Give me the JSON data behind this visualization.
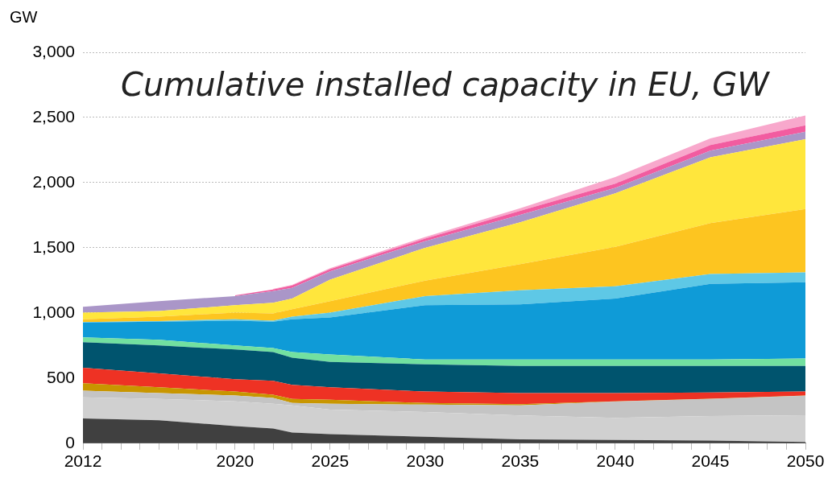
{
  "chart_data": {
    "type": "area",
    "title": "Cumulative installed capacity in EU, GW",
    "ylabel": "GW",
    "stacked": true,
    "x": [
      2012,
      2016,
      2020,
      2022,
      2023,
      2025,
      2030,
      2035,
      2040,
      2045,
      2050
    ],
    "series": [
      {
        "color": "#404040",
        "values": [
          190,
          176,
          132,
          113,
          82,
          70,
          50,
          30,
          25,
          20,
          10
        ]
      },
      {
        "color": "#d0d0d0",
        "values": [
          163,
          164,
          190,
          190,
          208,
          188,
          190,
          184,
          170,
          188,
          205
        ]
      },
      {
        "color": "#c4c4c4",
        "values": [
          51,
          45,
          44,
          44,
          19,
          45,
          56,
          76,
          125,
          132,
          150
        ]
      },
      {
        "color": "#c89600",
        "values": [
          56,
          44,
          31,
          25,
          31,
          31,
          13,
          10,
          2,
          1,
          1
        ]
      },
      {
        "color": "#ee3224",
        "values": [
          120,
          107,
          95,
          107,
          108,
          95,
          88,
          85,
          63,
          49,
          31
        ]
      },
      {
        "color": "#00546e",
        "values": [
          195,
          214,
          227,
          221,
          208,
          195,
          208,
          208,
          208,
          203,
          196
        ]
      },
      {
        "color": "#72e0a0",
        "values": [
          38,
          44,
          31,
          31,
          44,
          57,
          38,
          50,
          50,
          50,
          57
        ]
      },
      {
        "color": "#0f9bd7",
        "values": [
          114,
          139,
          190,
          202,
          252,
          284,
          417,
          423,
          467,
          580,
          586
        ]
      },
      {
        "color": "#5ec8e6",
        "values": [
          3,
          4,
          12,
          7,
          19,
          38,
          69,
          107,
          94,
          76,
          75
        ]
      },
      {
        "color": "#fdc520",
        "values": [
          22,
          34,
          51,
          56,
          57,
          88,
          119,
          202,
          303,
          391,
          486
        ]
      },
      {
        "color": "#ffe63c",
        "values": [
          51,
          44,
          56,
          82,
          82,
          164,
          252,
          321,
          410,
          504,
          536
        ]
      },
      {
        "color": "#aa96c8",
        "values": [
          44,
          76,
          70,
          89,
          82,
          63,
          51,
          57,
          43,
          51,
          57
        ]
      },
      {
        "color": "#f25ca0",
        "values": [
          null,
          null,
          6,
          13,
          18,
          17,
          19,
          31,
          32,
          44,
          50
        ]
      },
      {
        "color": "#f8a8cc",
        "values": [
          null,
          null,
          null,
          5,
          5,
          8,
          13,
          19,
          51,
          51,
          76
        ]
      }
    ],
    "xlim": [
      2012,
      2050
    ],
    "xticks": [
      2012,
      {
        "value": 2013,
        "label": null
      },
      {
        "value": 2014,
        "label": null
      },
      {
        "value": 2015,
        "label": null
      },
      {
        "value": 2016,
        "label": null
      },
      {
        "value": 2017,
        "label": null
      },
      {
        "value": 2018,
        "label": null
      },
      {
        "value": 2019,
        "label": null
      },
      2020,
      {
        "value": 2021,
        "label": null
      },
      {
        "value": 2022,
        "label": null
      },
      {
        "value": 2023,
        "label": null
      },
      {
        "value": 2024,
        "label": null
      },
      2025,
      {
        "value": 2026,
        "label": null
      },
      {
        "value": 2027,
        "label": null
      },
      {
        "value": 2028,
        "label": null
      },
      {
        "value": 2029,
        "label": null
      },
      2030,
      {
        "value": 2031,
        "label": null
      },
      {
        "value": 2032,
        "label": null
      },
      {
        "value": 2033,
        "label": null
      },
      {
        "value": 2034,
        "label": null
      },
      2035,
      {
        "value": 2036,
        "label": null
      },
      {
        "value": 2037,
        "label": null
      },
      {
        "value": 2038,
        "label": null
      },
      {
        "value": 2039,
        "label": null
      },
      2040,
      {
        "value": 2041,
        "label": null
      },
      {
        "value": 2042,
        "label": null
      },
      {
        "value": 2043,
        "label": null
      },
      {
        "value": 2044,
        "label": null
      },
      2045,
      {
        "value": 2046,
        "label": null
      },
      {
        "value": 2047,
        "label": null
      },
      {
        "value": 2048,
        "label": null
      },
      {
        "value": 2049,
        "label": null
      },
      2050
    ],
    "ylim": [
      0,
      3000
    ],
    "yticks": [
      {
        "value": 0,
        "label": "0"
      },
      {
        "value": 500,
        "label": "500"
      },
      {
        "value": 1000,
        "label": "1,000"
      },
      {
        "value": 1500,
        "label": "1,500"
      },
      {
        "value": 2000,
        "label": "2,000"
      },
      {
        "value": 2500,
        "label": "2,500"
      },
      {
        "value": 3000,
        "label": "3,000"
      }
    ],
    "grid": "y",
    "legend": false
  }
}
